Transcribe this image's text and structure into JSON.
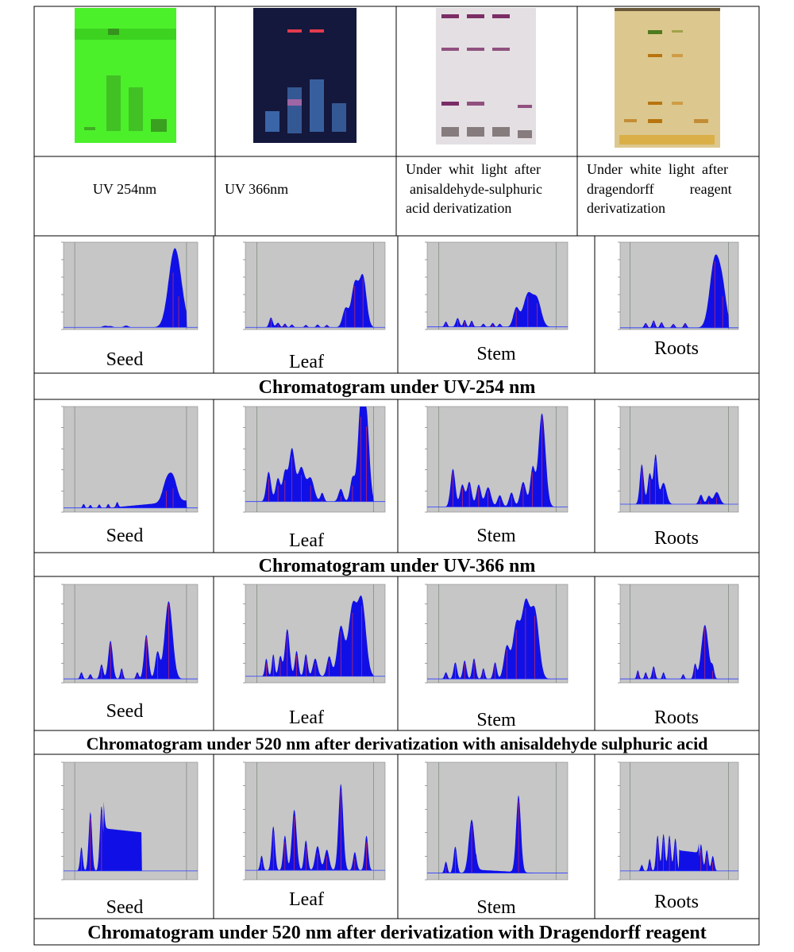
{
  "top_row": {
    "plates": [
      {
        "name": "plate-uv254",
        "caption": "UV 254nm",
        "bg": "#4cf02a",
        "band_color": "#2f6a1a"
      },
      {
        "name": "plate-uv366",
        "caption": "UV 366nm",
        "bg": "#14183c",
        "band_color": "#5aa6ff"
      },
      {
        "name": "plate-anisaldehyde",
        "caption_lines": [
          "Under  whit  light  after",
          "anisaldehyde-sulphuric",
          "acid derivatization"
        ],
        "bg": "#e4dfe2",
        "band_color": "#7b2d66"
      },
      {
        "name": "plate-dragendorff",
        "caption_lines": [
          "Under  white  light  after",
          "dragendorff          reagent",
          "derivatization"
        ],
        "bg": "#dcc88e",
        "band_color": "#b8740f"
      }
    ]
  },
  "sections": [
    {
      "name": "uv254",
      "heading": "Chromatogram under UV-254 nm"
    },
    {
      "name": "uv366",
      "heading": "Chromatogram under UV-366 nm"
    },
    {
      "name": "anisaldehyde",
      "heading": "Chromatogram under 520 nm after derivatization with anisaldehyde sulphuric acid"
    },
    {
      "name": "dragendorff",
      "heading": "Chromatogram under 520 nm after derivatization with Dragendorff reagent"
    }
  ],
  "chart_data": [
    {
      "type": "area",
      "section": "uv254",
      "panel_label": "Seed",
      "rf_range": [
        -0.1,
        1.1
      ],
      "ylim": [
        0,
        1000
      ],
      "peaks": [
        [
          0.27,
          25,
          0.02
        ],
        [
          0.32,
          22,
          0.02
        ],
        [
          0.46,
          28,
          0.02
        ],
        [
          0.88,
          650,
          0.05
        ],
        [
          0.93,
          380,
          0.05
        ]
      ],
      "baseline": 25
    },
    {
      "type": "area",
      "section": "uv254",
      "panel_label": "Leaf",
      "rf_range": [
        -0.1,
        1.1
      ],
      "ylim": [
        0,
        1000
      ],
      "peaks": [
        [
          0.12,
          120,
          0.015
        ],
        [
          0.18,
          60,
          0.015
        ],
        [
          0.24,
          50,
          0.012
        ],
        [
          0.3,
          40,
          0.012
        ],
        [
          0.42,
          35,
          0.012
        ],
        [
          0.52,
          40,
          0.012
        ],
        [
          0.6,
          35,
          0.012
        ],
        [
          0.76,
          220,
          0.025
        ],
        [
          0.84,
          500,
          0.03
        ],
        [
          0.91,
          580,
          0.03
        ]
      ],
      "baseline": 25
    },
    {
      "type": "area",
      "section": "uv254",
      "panel_label": "Stem",
      "rf_range": [
        -0.1,
        1.1
      ],
      "ylim": [
        0,
        1000
      ],
      "peaks": [
        [
          0.06,
          70,
          0.012
        ],
        [
          0.16,
          110,
          0.015
        ],
        [
          0.22,
          90,
          0.012
        ],
        [
          0.28,
          80,
          0.012
        ],
        [
          0.38,
          45,
          0.012
        ],
        [
          0.46,
          55,
          0.012
        ],
        [
          0.52,
          45,
          0.012
        ],
        [
          0.66,
          220,
          0.025
        ],
        [
          0.76,
          380,
          0.04
        ],
        [
          0.84,
          300,
          0.035
        ]
      ],
      "baseline": 30
    },
    {
      "type": "area",
      "section": "uv254",
      "panel_label": "Roots",
      "rf_range": [
        -0.1,
        1.1
      ],
      "ylim": [
        0,
        1000
      ],
      "peaks": [
        [
          0.16,
          60,
          0.015
        ],
        [
          0.24,
          90,
          0.015
        ],
        [
          0.32,
          70,
          0.015
        ],
        [
          0.44,
          50,
          0.015
        ],
        [
          0.56,
          60,
          0.015
        ],
        [
          0.86,
          780,
          0.05
        ],
        [
          0.94,
          380,
          0.04
        ]
      ],
      "baseline": 20
    },
    {
      "type": "area",
      "section": "uv366",
      "panel_label": "Seed",
      "rf_range": [
        -0.1,
        1.1
      ],
      "ylim": [
        0,
        200
      ],
      "peaks": [
        [
          0.08,
          10,
          0.01
        ],
        [
          0.14,
          8,
          0.01
        ],
        [
          0.22,
          9,
          0.01
        ],
        [
          0.3,
          10,
          0.01
        ],
        [
          0.38,
          12,
          0.01
        ],
        [
          0.82,
          40,
          0.035
        ],
        [
          0.88,
          45,
          0.035
        ]
      ],
      "baseline": 8,
      "rising_baseline": true
    },
    {
      "type": "area",
      "section": "uv366",
      "panel_label": "Leaf",
      "rf_range": [
        -0.1,
        1.1
      ],
      "ylim": [
        0,
        800
      ],
      "peaks": [
        [
          0.1,
          250,
          0.02
        ],
        [
          0.18,
          200,
          0.02
        ],
        [
          0.24,
          240,
          0.02
        ],
        [
          0.3,
          420,
          0.025
        ],
        [
          0.38,
          280,
          0.03
        ],
        [
          0.46,
          200,
          0.03
        ],
        [
          0.56,
          90,
          0.015
        ],
        [
          0.72,
          120,
          0.02
        ],
        [
          0.82,
          200,
          0.02
        ],
        [
          0.89,
          720,
          0.025
        ],
        [
          0.94,
          650,
          0.025
        ]
      ],
      "baseline": 80
    },
    {
      "type": "area",
      "section": "uv366",
      "panel_label": "Stem",
      "rf_range": [
        -0.1,
        1.1
      ],
      "ylim": [
        0,
        800
      ],
      "peaks": [
        [
          0.12,
          300,
          0.02
        ],
        [
          0.2,
          180,
          0.02
        ],
        [
          0.26,
          200,
          0.02
        ],
        [
          0.34,
          180,
          0.02
        ],
        [
          0.42,
          160,
          0.025
        ],
        [
          0.52,
          100,
          0.02
        ],
        [
          0.62,
          120,
          0.02
        ],
        [
          0.72,
          200,
          0.025
        ],
        [
          0.8,
          300,
          0.02
        ],
        [
          0.88,
          720,
          0.03
        ]
      ],
      "baseline": 40
    },
    {
      "type": "area",
      "section": "uv366",
      "panel_label": "Roots",
      "rf_range": [
        -0.1,
        1.1
      ],
      "ylim": [
        0,
        800
      ],
      "peaks": [
        [
          0.12,
          320,
          0.02
        ],
        [
          0.2,
          250,
          0.02
        ],
        [
          0.26,
          390,
          0.02
        ],
        [
          0.34,
          180,
          0.03
        ],
        [
          0.72,
          90,
          0.02
        ],
        [
          0.8,
          80,
          0.02
        ],
        [
          0.88,
          110,
          0.03
        ]
      ],
      "baseline": 60
    },
    {
      "type": "area",
      "section": "anisaldehyde",
      "panel_label": "Seed",
      "rf_range": [
        -0.1,
        1.1
      ],
      "ylim": [
        0,
        500
      ],
      "peaks": [
        [
          0.06,
          40,
          0.012
        ],
        [
          0.14,
          30,
          0.012
        ],
        [
          0.24,
          80,
          0.015
        ],
        [
          0.32,
          200,
          0.02
        ],
        [
          0.42,
          60,
          0.012
        ],
        [
          0.56,
          40,
          0.012
        ],
        [
          0.64,
          230,
          0.02
        ],
        [
          0.74,
          140,
          0.02
        ],
        [
          0.84,
          400,
          0.035
        ]
      ],
      "baseline": 20
    },
    {
      "type": "area",
      "section": "anisaldehyde",
      "panel_label": "Leaf",
      "rf_range": [
        -0.1,
        1.1
      ],
      "ylim": [
        0,
        900
      ],
      "peaks": [
        [
          0.08,
          180,
          0.012
        ],
        [
          0.14,
          220,
          0.012
        ],
        [
          0.2,
          200,
          0.015
        ],
        [
          0.26,
          450,
          0.02
        ],
        [
          0.34,
          250,
          0.015
        ],
        [
          0.42,
          220,
          0.015
        ],
        [
          0.5,
          180,
          0.02
        ],
        [
          0.62,
          200,
          0.02
        ],
        [
          0.72,
          470,
          0.03
        ],
        [
          0.82,
          640,
          0.035
        ],
        [
          0.9,
          700,
          0.035
        ]
      ],
      "baseline": 60
    },
    {
      "type": "area",
      "section": "anisaldehyde",
      "panel_label": "Stem",
      "rf_range": [
        -0.1,
        1.1
      ],
      "ylim": [
        0,
        500
      ],
      "peaks": [
        [
          0.06,
          40,
          0.012
        ],
        [
          0.14,
          90,
          0.015
        ],
        [
          0.22,
          100,
          0.015
        ],
        [
          0.3,
          110,
          0.015
        ],
        [
          0.38,
          60,
          0.012
        ],
        [
          0.48,
          90,
          0.015
        ],
        [
          0.58,
          170,
          0.025
        ],
        [
          0.66,
          270,
          0.03
        ],
        [
          0.74,
          380,
          0.035
        ],
        [
          0.82,
          340,
          0.035
        ]
      ],
      "baseline": 20
    },
    {
      "type": "area",
      "section": "anisaldehyde",
      "panel_label": "Roots",
      "rf_range": [
        -0.1,
        1.1
      ],
      "ylim": [
        0,
        500
      ],
      "peaks": [
        [
          0.08,
          50,
          0.012
        ],
        [
          0.16,
          40,
          0.012
        ],
        [
          0.24,
          70,
          0.015
        ],
        [
          0.34,
          40,
          0.012
        ],
        [
          0.54,
          30,
          0.012
        ],
        [
          0.66,
          80,
          0.015
        ],
        [
          0.76,
          280,
          0.035
        ],
        [
          0.84,
          60,
          0.015
        ]
      ],
      "baseline": 20
    },
    {
      "type": "area",
      "section": "dragendorff",
      "panel_label": "Seed",
      "rf_range": [
        -0.1,
        1.1
      ],
      "ylim": [
        0,
        400
      ],
      "peaks": [
        [
          0.06,
          90,
          0.012
        ],
        [
          0.14,
          210,
          0.015
        ],
        [
          0.24,
          230,
          0.015
        ]
      ],
      "baseline": 30,
      "plateau": [
        0.26,
        0.6,
        175
      ]
    },
    {
      "type": "area",
      "section": "dragendorff",
      "panel_label": "Leaf",
      "rf_range": [
        -0.1,
        1.1
      ],
      "ylim": [
        0,
        1000
      ],
      "peaks": [
        [
          0.04,
          150,
          0.012
        ],
        [
          0.14,
          400,
          0.015
        ],
        [
          0.24,
          320,
          0.015
        ],
        [
          0.32,
          540,
          0.02
        ],
        [
          0.42,
          280,
          0.015
        ],
        [
          0.52,
          230,
          0.02
        ],
        [
          0.6,
          200,
          0.02
        ],
        [
          0.72,
          760,
          0.02
        ],
        [
          0.84,
          180,
          0.015
        ],
        [
          0.94,
          320,
          0.015
        ]
      ],
      "baseline": 80
    },
    {
      "type": "area",
      "section": "dragendorff",
      "panel_label": "Stem",
      "rf_range": [
        -0.1,
        1.1
      ],
      "ylim": [
        0,
        700
      ],
      "peaks": [
        [
          0.06,
          80,
          0.012
        ],
        [
          0.14,
          170,
          0.015
        ],
        [
          0.28,
          330,
          0.025
        ],
        [
          0.68,
          470,
          0.02
        ]
      ],
      "baseline": 40,
      "plateau": [
        0.32,
        0.9,
        60
      ]
    },
    {
      "type": "area",
      "section": "dragendorff",
      "panel_label": "Roots",
      "rf_range": [
        -0.1,
        1.1
      ],
      "ylim": [
        0,
        400
      ],
      "peaks": [
        [
          0.12,
          30,
          0.012
        ],
        [
          0.2,
          50,
          0.012
        ],
        [
          0.28,
          130,
          0.015
        ],
        [
          0.34,
          135,
          0.015
        ],
        [
          0.4,
          130,
          0.015
        ],
        [
          0.46,
          120,
          0.015
        ],
        [
          0.72,
          100,
          0.015
        ],
        [
          0.78,
          80,
          0.015
        ],
        [
          0.84,
          60,
          0.015
        ]
      ],
      "baseline": 30,
      "plateau": [
        0.5,
        0.7,
        100
      ]
    }
  ]
}
